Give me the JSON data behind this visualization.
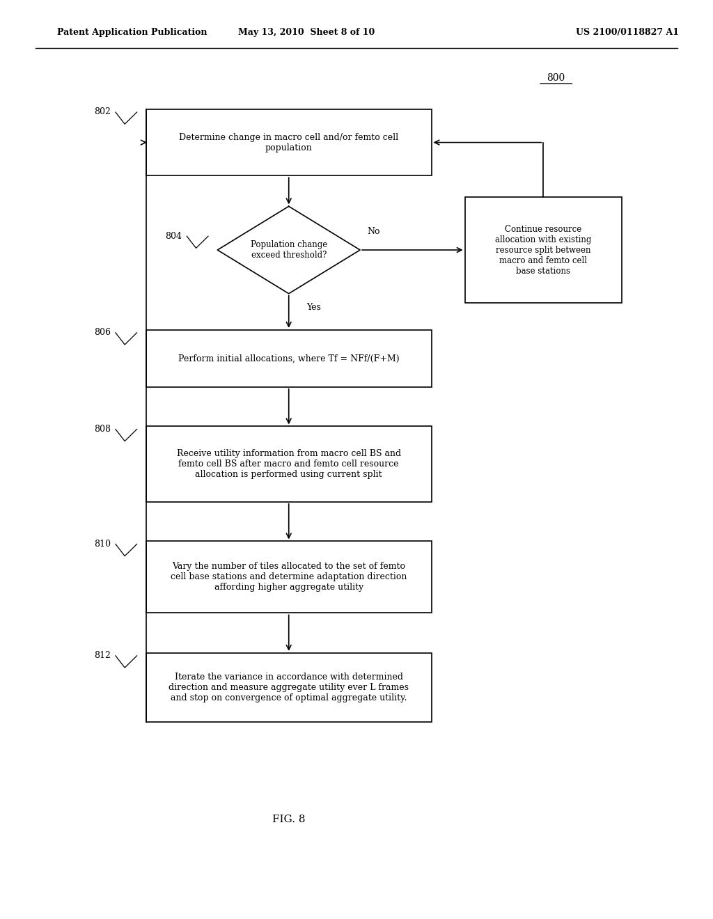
{
  "header_left": "Patent Application Publication",
  "header_mid": "May 13, 2010  Sheet 8 of 10",
  "header_right": "US 2100/0118827 A1",
  "fig_label": "FIG. 8",
  "diagram_label": "800",
  "background_color": "#ffffff",
  "box_802_text": "Determine change in macro cell and/or femto cell\npopulation",
  "box_804_text": "Population change\nexceed threshold?",
  "box_no_text": "Continue resource\nallocation with existing\nresource split between\nmacro and femto cell\nbase stations",
  "box_806_text": "Perform initial allocations, where Tf = NFf/(F+M)",
  "box_808_text": "Receive utility information from macro cell BS and\nfemto cell BS after macro and femto cell resource\nallocation is performed using current split",
  "box_810_text": "Vary the number of tiles allocated to the set of femto\ncell base stations and determine adaptation direction\naffording higher aggregate utility",
  "box_812_text": "Iterate the variance in accordance with determined\ndirection and measure aggregate utility ever L frames\nand stop on convergence of optimal aggregate utility.",
  "label_802": "802",
  "label_804": "804",
  "label_806": "806",
  "label_808": "808",
  "label_810": "810",
  "label_812": "812",
  "no_label": "No",
  "yes_label": "Yes"
}
